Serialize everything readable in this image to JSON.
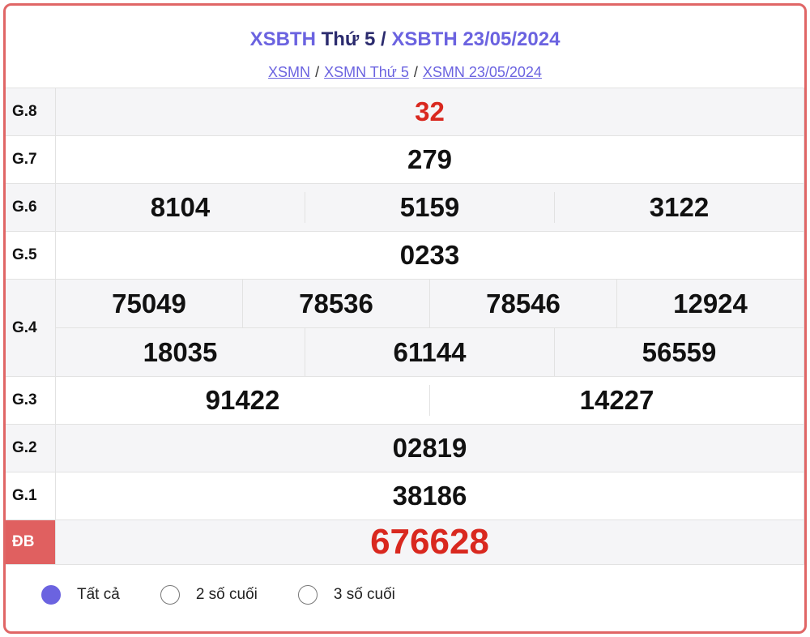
{
  "header": {
    "title_part1": "XSBTH",
    "title_part2": "Thứ 5",
    "title_sep": "/",
    "title_part3": "XSBTH 23/05/2024",
    "breadcrumbs": [
      "XSMN",
      "XSMN Thứ 5",
      "XSMN 23/05/2024"
    ],
    "breadcrumb_sep": "/"
  },
  "prizes": {
    "g8": {
      "label": "G.8",
      "numbers": [
        "32"
      ]
    },
    "g7": {
      "label": "G.7",
      "numbers": [
        "279"
      ]
    },
    "g6": {
      "label": "G.6",
      "numbers": [
        "8104",
        "5159",
        "3122"
      ]
    },
    "g5": {
      "label": "G.5",
      "numbers": [
        "0233"
      ]
    },
    "g4": {
      "label": "G.4",
      "numbers": [
        "75049",
        "78536",
        "78546",
        "12924",
        "18035",
        "61144",
        "56559"
      ]
    },
    "g3": {
      "label": "G.3",
      "numbers": [
        "91422",
        "14227"
      ]
    },
    "g2": {
      "label": "G.2",
      "numbers": [
        "02819"
      ]
    },
    "g1": {
      "label": "G.1",
      "numbers": [
        "38186"
      ]
    },
    "db": {
      "label": "ĐB",
      "numbers": [
        "676628"
      ]
    }
  },
  "filter": {
    "options": [
      "Tất cả",
      "2 số cuối",
      "3 số cuối"
    ],
    "selected": "Tất cả"
  },
  "colors": {
    "accent": "#6b63e0",
    "red": "#d9281f",
    "border": "#e06666"
  }
}
